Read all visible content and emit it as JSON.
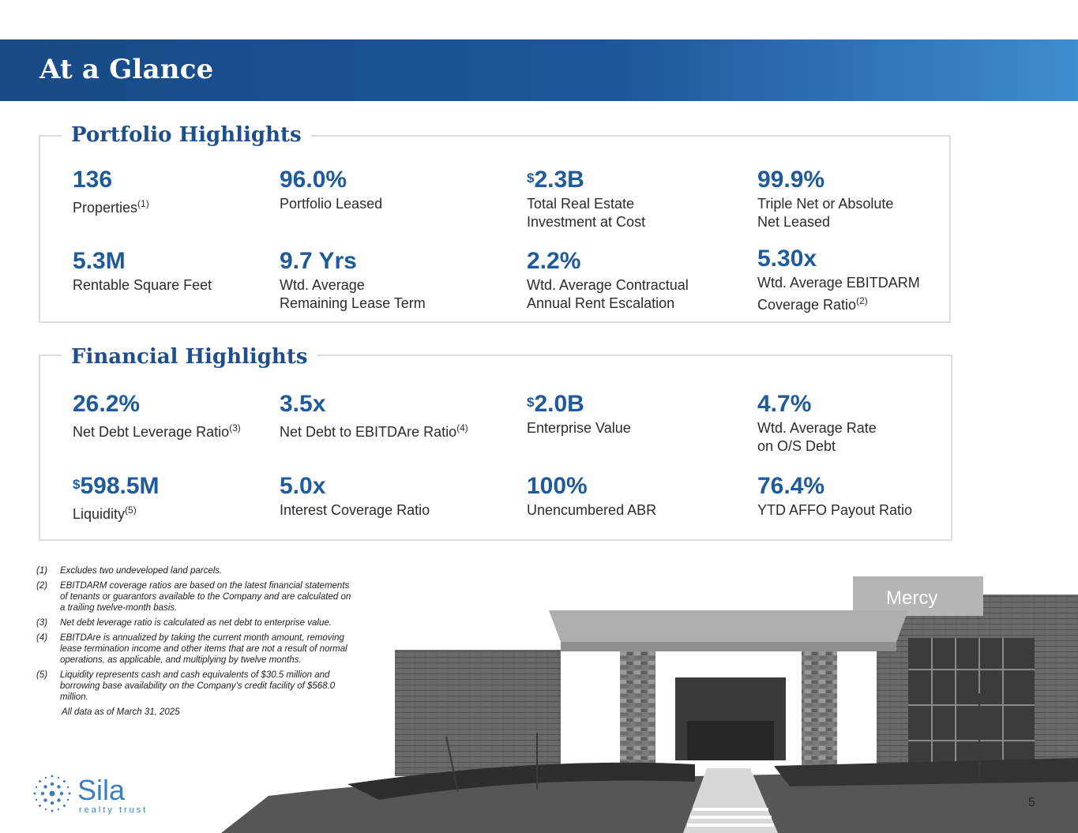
{
  "header": {
    "title": "At a Glance"
  },
  "portfolio": {
    "title": "Portfolio Highlights",
    "stats": [
      {
        "prefix": "",
        "value": "136",
        "label1": "Properties",
        "label1_sup": "(1)",
        "label2": ""
      },
      {
        "prefix": "",
        "value": "96.0%",
        "label1": "Portfolio Leased",
        "label1_sup": "",
        "label2": ""
      },
      {
        "prefix": "$",
        "value": "2.3B",
        "label1": "Total Real Estate",
        "label1_sup": "",
        "label2": "Investment at Cost"
      },
      {
        "prefix": "",
        "value": "99.9%",
        "label1": "Triple Net or Absolute",
        "label1_sup": "",
        "label2": "Net Leased"
      },
      {
        "prefix": "",
        "value": "5.3M",
        "label1": "Rentable Square Feet",
        "label1_sup": "",
        "label2": ""
      },
      {
        "prefix": "",
        "value": "9.7 Yrs",
        "label1": "Wtd. Average",
        "label1_sup": "",
        "label2": "Remaining Lease Term"
      },
      {
        "prefix": "",
        "value": "2.2%",
        "label1": "Wtd. Average Contractual",
        "label1_sup": "",
        "label2": "Annual Rent Escalation"
      },
      {
        "prefix": "",
        "value": "5.30x",
        "label1": "Wtd. Average EBITDARM",
        "label1_sup": "",
        "label2": "Coverage Ratio",
        "label2_sup": "(2)"
      }
    ]
  },
  "financial": {
    "title": "Financial Highlights",
    "stats": [
      {
        "prefix": "",
        "value": "26.2%",
        "label1": "Net Debt Leverage Ratio",
        "label1_sup": "(3)",
        "label2": ""
      },
      {
        "prefix": "",
        "value": "3.5x",
        "label1": "Net Debt to EBITDAre Ratio",
        "label1_sup": "(4)",
        "label2": ""
      },
      {
        "prefix": "$",
        "value": "2.0B",
        "label1": "Enterprise Value",
        "label1_sup": "",
        "label2": ""
      },
      {
        "prefix": "",
        "value": "4.7%",
        "label1": "Wtd. Average Rate",
        "label1_sup": "",
        "label2": "on O/S Debt"
      },
      {
        "prefix": "$",
        "value": "598.5M",
        "label1": "Liquidity",
        "label1_sup": "(5)",
        "label2": ""
      },
      {
        "prefix": "",
        "value": "5.0x",
        "label1": "Interest Coverage Ratio",
        "label1_sup": "",
        "label2": ""
      },
      {
        "prefix": "",
        "value": "100%",
        "label1": "Unencumbered ABR",
        "label1_sup": "",
        "label2": ""
      },
      {
        "prefix": "",
        "value": "76.4%",
        "label1": "YTD AFFO Payout Ratio",
        "label1_sup": "",
        "label2": ""
      }
    ]
  },
  "footnotes": [
    {
      "num": "(1)",
      "text": "Excludes two undeveloped land parcels."
    },
    {
      "num": "(2)",
      "text": "EBITDARM coverage ratios are based on the latest financial statements of tenants or guarantors available to the Company and are calculated on a trailing twelve-month basis."
    },
    {
      "num": "(3)",
      "text": "Net debt leverage ratio is calculated as net debt to enterprise value."
    },
    {
      "num": "(4)",
      "text": "EBITDAre is annualized by taking the current month amount, removing lease termination income and other items that are not a result of normal operations, as applicable, and multiplying by twelve months."
    },
    {
      "num": "(5)",
      "text": "Liquidity represents cash and cash equivalents of $30.5 million and borrowing base availability on the Company’s credit facility of $568.0 million."
    }
  ],
  "as_of": "All data as of March 31, 2025",
  "photo": {
    "sign_text": "Mercy"
  },
  "logo": {
    "name": "Sila",
    "tagline": "realty trust"
  },
  "page_number": "5",
  "colors": {
    "banner": "#1c5596",
    "accent": "#1e5a9c",
    "title": "#1e4f8c"
  }
}
